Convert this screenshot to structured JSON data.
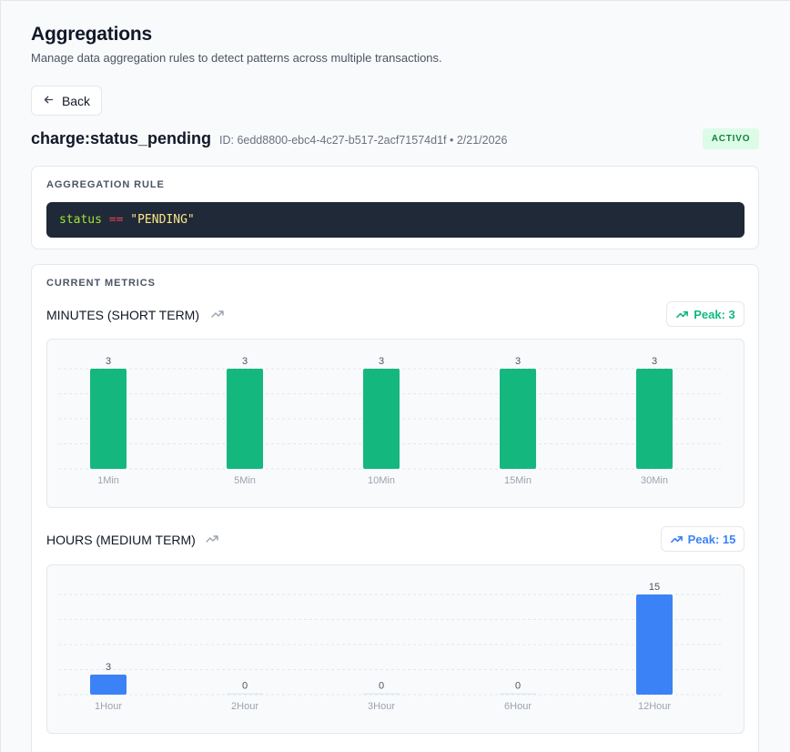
{
  "page": {
    "title": "Aggregations",
    "subtitle": "Manage data aggregation rules to detect patterns across multiple transactions."
  },
  "nav": {
    "back_label": "Back"
  },
  "aggregation": {
    "name": "charge:status_pending",
    "meta": "ID: 6edd8800-ebc4-4c27-b517-2acf71574d1f • 2/21/2026",
    "status": "ACTIVO",
    "rule_label": "AGGREGATION RULE",
    "rule_code": {
      "ident": "status",
      "op": "==",
      "value": "\"PENDING\""
    }
  },
  "metrics": {
    "label": "CURRENT METRICS",
    "short_term": {
      "title": "MINUTES (SHORT TERM)",
      "peak_label": "Peak: 3"
    },
    "medium_term": {
      "title": "HOURS (MEDIUM TERM)",
      "peak_label": "Peak: 15"
    }
  },
  "icons": {
    "back": "arrow-left-icon",
    "trend": "trending-up-icon"
  },
  "colors": {
    "green": "#10b981",
    "bar_green": "#14b87f",
    "blue": "#3b82f6",
    "active_badge_bg": "#dcfce7",
    "active_badge_text": "#15803d"
  },
  "chart_data": [
    {
      "type": "bar",
      "categories": [
        "1Min",
        "5Min",
        "10Min",
        "15Min",
        "30Min"
      ],
      "values": [
        3,
        3,
        3,
        3,
        3
      ],
      "ylim": [
        0,
        3
      ],
      "grid": true,
      "color": "#14b87f"
    },
    {
      "type": "bar",
      "categories": [
        "1Hour",
        "2Hour",
        "3Hour",
        "6Hour",
        "12Hour"
      ],
      "values": [
        3,
        0,
        0,
        0,
        15
      ],
      "ylim": [
        0,
        15
      ],
      "grid": true,
      "color": "#3b82f6"
    }
  ]
}
